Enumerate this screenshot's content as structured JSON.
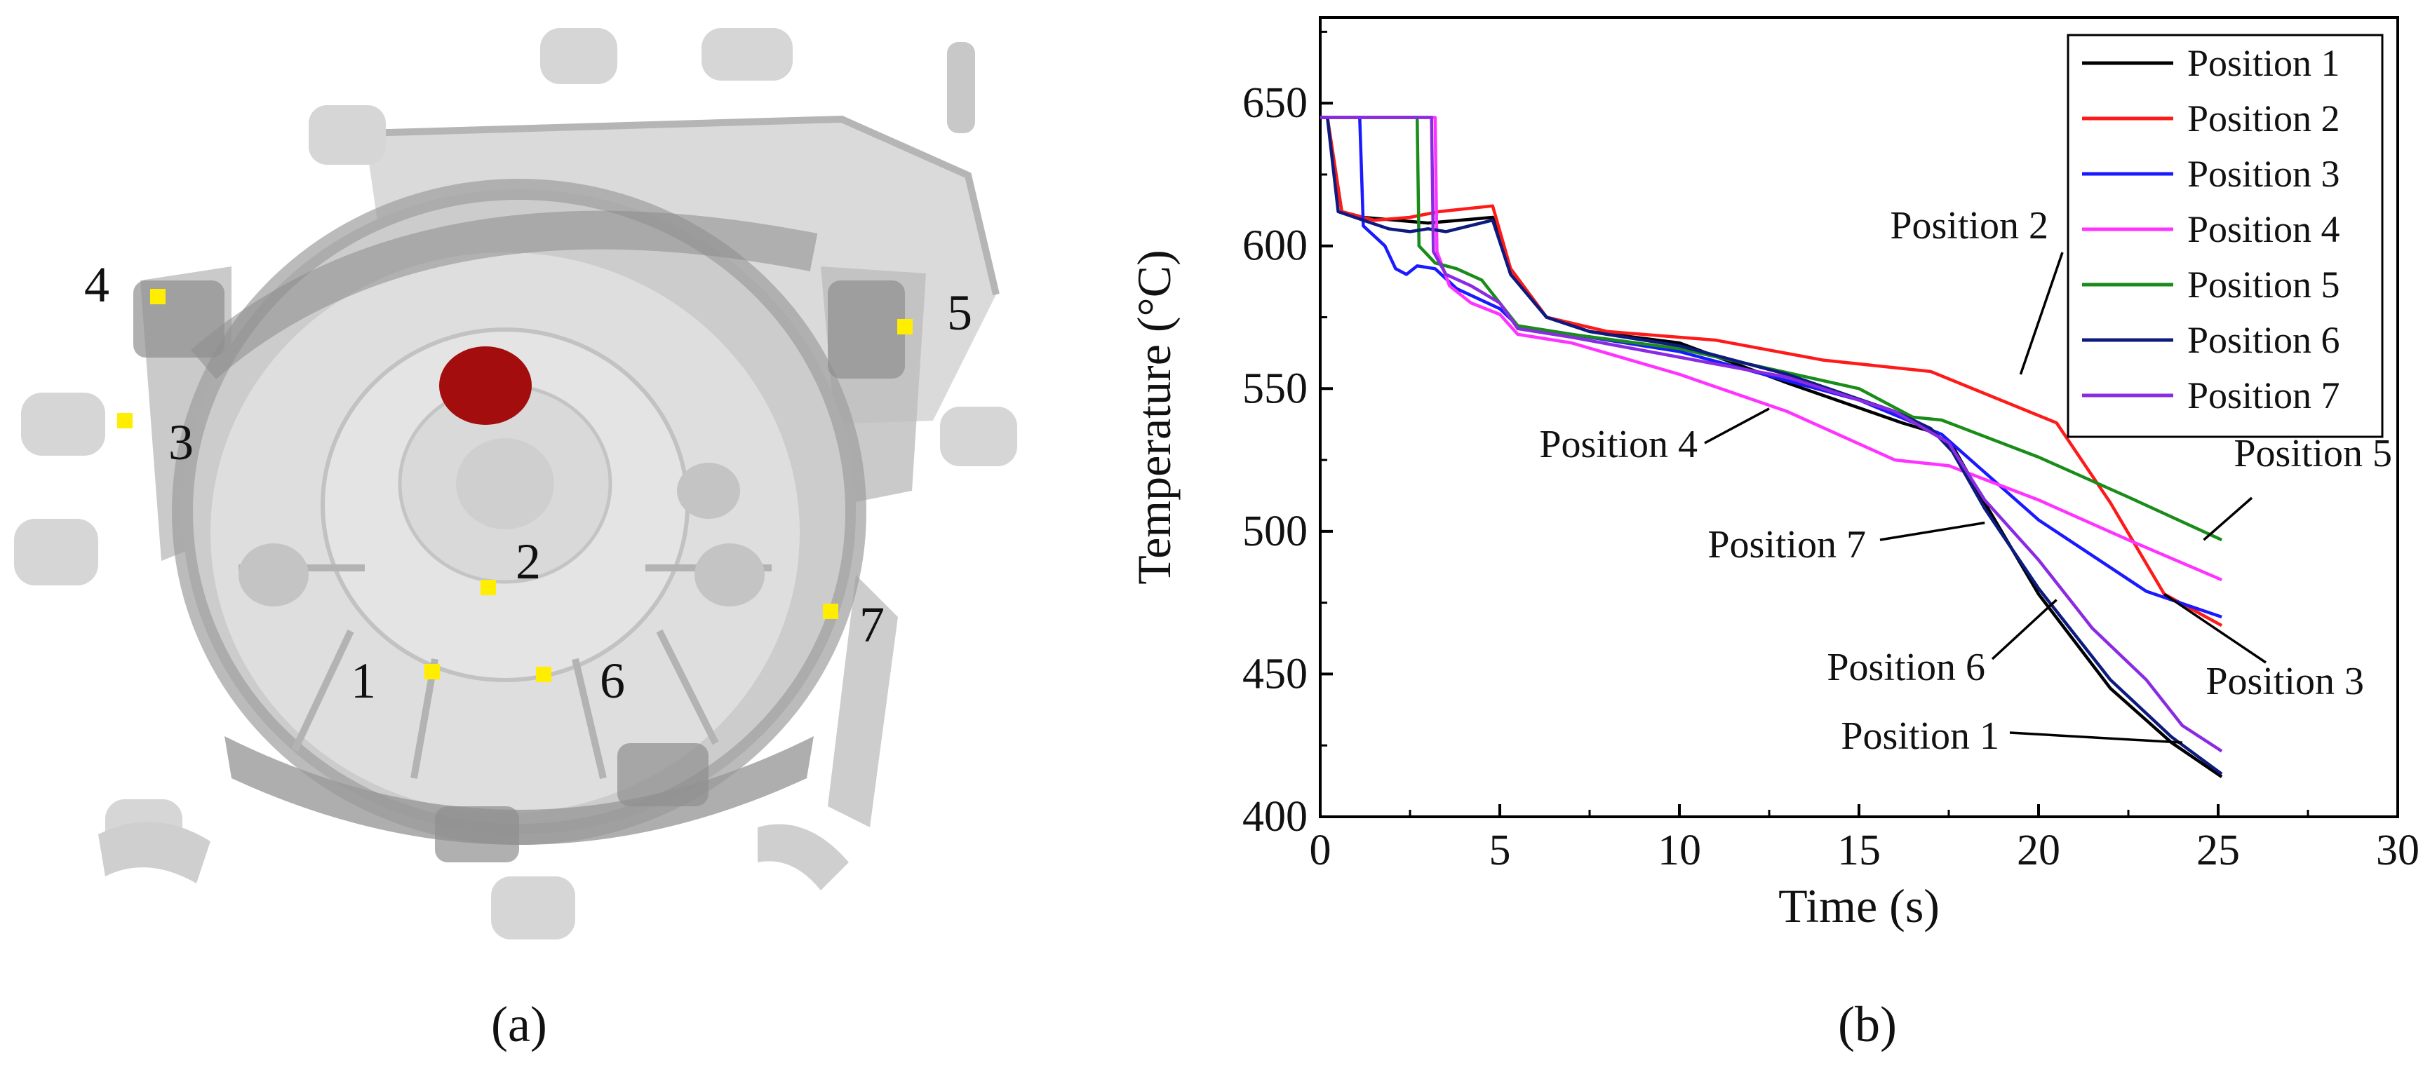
{
  "captions": {
    "a": "(a)",
    "b": "(b)"
  },
  "panel_a": {
    "positions": [
      {
        "label": "1"
      },
      {
        "label": "2"
      },
      {
        "label": "3"
      },
      {
        "label": "4"
      },
      {
        "label": "5"
      },
      {
        "label": "6"
      },
      {
        "label": "7"
      }
    ],
    "colors": {
      "casting": "#d8d8d8",
      "casting_dark": "#a9a9a9",
      "gate": "#a30d0d",
      "marker": "#ffee00"
    }
  },
  "chart_data": {
    "type": "line",
    "title": "",
    "xlabel": "Time (s)",
    "ylabel": "Temperature (°C)",
    "xlim": [
      0,
      30
    ],
    "ylim": [
      400,
      680
    ],
    "xticks": [
      0,
      5,
      10,
      15,
      20,
      25,
      30
    ],
    "yticks": [
      400,
      450,
      500,
      550,
      600,
      650
    ],
    "legend_position": "top-right",
    "series": [
      {
        "name": "Position 1",
        "color": "#000000",
        "points": [
          [
            0,
            645
          ],
          [
            0.2,
            645
          ],
          [
            0.6,
            612
          ],
          [
            1.2,
            610
          ],
          [
            3,
            608
          ],
          [
            4.8,
            610
          ],
          [
            5.3,
            592
          ],
          [
            6.3,
            575
          ],
          [
            7.5,
            570
          ],
          [
            10,
            566
          ],
          [
            13,
            552
          ],
          [
            16.2,
            538
          ],
          [
            17,
            535
          ],
          [
            17.6,
            530
          ],
          [
            18.5,
            510
          ],
          [
            20,
            478
          ],
          [
            22,
            445
          ],
          [
            23.7,
            426
          ],
          [
            25.1,
            414
          ]
        ]
      },
      {
        "name": "Position 2",
        "color": "#ff1a1a",
        "points": [
          [
            0,
            645
          ],
          [
            0.2,
            645
          ],
          [
            0.6,
            612
          ],
          [
            1.5,
            609
          ],
          [
            2.5,
            610
          ],
          [
            3.3,
            612
          ],
          [
            4.8,
            614
          ],
          [
            5.3,
            592
          ],
          [
            6.3,
            575
          ],
          [
            8,
            570
          ],
          [
            11,
            567
          ],
          [
            14,
            560
          ],
          [
            17,
            556
          ],
          [
            20.5,
            538
          ],
          [
            22,
            510
          ],
          [
            23.5,
            478
          ],
          [
            25.1,
            467
          ]
        ]
      },
      {
        "name": "Position 3",
        "color": "#1a1aff",
        "points": [
          [
            0,
            645
          ],
          [
            1.1,
            645
          ],
          [
            1.2,
            607
          ],
          [
            1.8,
            600
          ],
          [
            2.1,
            592
          ],
          [
            2.4,
            590
          ],
          [
            2.7,
            593
          ],
          [
            3.2,
            592
          ],
          [
            3.8,
            585
          ],
          [
            5,
            578
          ],
          [
            5.5,
            572
          ],
          [
            7,
            569
          ],
          [
            10,
            563
          ],
          [
            15,
            546
          ],
          [
            17.3,
            534
          ],
          [
            20,
            504
          ],
          [
            23,
            479
          ],
          [
            25.1,
            470
          ]
        ]
      },
      {
        "name": "Position 4",
        "color": "#ff33ff",
        "points": [
          [
            0,
            645
          ],
          [
            3.2,
            645
          ],
          [
            3.25,
            598
          ],
          [
            3.6,
            586
          ],
          [
            4.2,
            580
          ],
          [
            5,
            576
          ],
          [
            5.5,
            569
          ],
          [
            7,
            566
          ],
          [
            10,
            555
          ],
          [
            13,
            542
          ],
          [
            16,
            525
          ],
          [
            17.5,
            523
          ],
          [
            20,
            511
          ],
          [
            22.5,
            497
          ],
          [
            25.1,
            483
          ]
        ]
      },
      {
        "name": "Position 5",
        "color": "#1a8c1a",
        "points": [
          [
            0,
            645
          ],
          [
            2.7,
            645
          ],
          [
            2.75,
            600
          ],
          [
            3.2,
            594
          ],
          [
            3.8,
            592
          ],
          [
            4.5,
            588
          ],
          [
            5.5,
            572
          ],
          [
            7,
            569
          ],
          [
            10,
            564
          ],
          [
            15,
            550
          ],
          [
            16.5,
            540
          ],
          [
            17.3,
            539
          ],
          [
            20,
            526
          ],
          [
            22.5,
            512
          ],
          [
            25.1,
            497
          ]
        ]
      },
      {
        "name": "Position 6",
        "color": "#0d1a7f",
        "points": [
          [
            0,
            645
          ],
          [
            0.2,
            645
          ],
          [
            0.5,
            612
          ],
          [
            1.2,
            609
          ],
          [
            1.9,
            606
          ],
          [
            2.5,
            605
          ],
          [
            3,
            606
          ],
          [
            3.5,
            605
          ],
          [
            4.8,
            609
          ],
          [
            5.3,
            590
          ],
          [
            6.3,
            575
          ],
          [
            7.5,
            570
          ],
          [
            10,
            565
          ],
          [
            13,
            555
          ],
          [
            16,
            542
          ],
          [
            17,
            536
          ],
          [
            17.6,
            528
          ],
          [
            18.5,
            508
          ],
          [
            20,
            480
          ],
          [
            22,
            448
          ],
          [
            23.7,
            428
          ],
          [
            25.1,
            415
          ]
        ]
      },
      {
        "name": "Position 7",
        "color": "#8a2be2",
        "points": [
          [
            0,
            645
          ],
          [
            3.1,
            645
          ],
          [
            3.15,
            598
          ],
          [
            3.5,
            590
          ],
          [
            4.2,
            586
          ],
          [
            5,
            580
          ],
          [
            5.5,
            571
          ],
          [
            7,
            568
          ],
          [
            10,
            561
          ],
          [
            13,
            554
          ],
          [
            16,
            542
          ],
          [
            17.5,
            531
          ],
          [
            18.5,
            511
          ],
          [
            20,
            490
          ],
          [
            21.5,
            466
          ],
          [
            23,
            448
          ],
          [
            24,
            432
          ],
          [
            25.1,
            423
          ]
        ]
      }
    ],
    "annotations": [
      {
        "text": "Position 2",
        "target_x": 19.5,
        "target_y": 555
      },
      {
        "text": "Position 4",
        "target_x": 12.5,
        "target_y": 543
      },
      {
        "text": "Position 5",
        "target_x": 24.6,
        "target_y": 497
      },
      {
        "text": "Position 7",
        "target_x": 18.5,
        "target_y": 503
      },
      {
        "text": "Position 3",
        "target_x": 23.5,
        "target_y": 478
      },
      {
        "text": "Position 6",
        "target_x": 20.5,
        "target_y": 476
      },
      {
        "text": "Position 1",
        "target_x": 24.0,
        "target_y": 426
      }
    ]
  }
}
